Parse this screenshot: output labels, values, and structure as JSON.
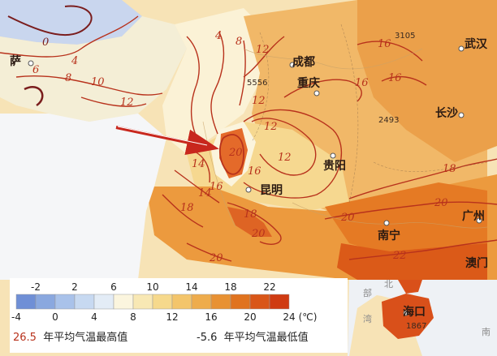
{
  "cities": {
    "chengdu": "成都",
    "chongqing": "重庆",
    "wuhan": "武汉",
    "changsha": "长沙",
    "guiyang": "贵阳",
    "kunming": "昆明",
    "nanning": "南宁",
    "guangzhou": "广州",
    "macau": "澳门",
    "haikou": "海口",
    "lhasa_partial": "萨"
  },
  "elevations": {
    "e1": "3105",
    "e2": "5556",
    "e3": "2493",
    "e4": "1867"
  },
  "isotherm_labels": {
    "a": "0",
    "b": "4",
    "c": "6",
    "d": "8",
    "e": "10",
    "f": "12",
    "g": "12",
    "h": "4",
    "i": "8",
    "j": "12",
    "k": "16",
    "l": "16",
    "m": "16",
    "n": "14",
    "o": "12",
    "p": "12",
    "q": "16",
    "r": "20",
    "s": "14",
    "t": "16",
    "u": "18",
    "v": "20",
    "w": "18",
    "x": "20",
    "y": "20",
    "z": "18",
    "aa": "22",
    "ab": "20"
  },
  "faint_labels": {
    "sea1": "部",
    "sea2": "北",
    "sea3": "湾",
    "sea4": "南"
  },
  "legend": {
    "colors": [
      "#6f8fd6",
      "#8aa8df",
      "#a9c2ea",
      "#c7d9f1",
      "#e3ecf6",
      "#fbf5de",
      "#f8e8b4",
      "#f6d98c",
      "#f3c56b",
      "#eeac4c",
      "#e89133",
      "#e0731f",
      "#d95618",
      "#cf3b12"
    ],
    "top_ticks": [
      "-2",
      "2",
      "6",
      "10",
      "14",
      "18",
      "22"
    ],
    "bottom_ticks": [
      "-4",
      "0",
      "4",
      "8",
      "12",
      "16",
      "20",
      "24"
    ],
    "unit": "(℃)",
    "note_max_value": "26.5",
    "note_max_label": "年平均气温最高值",
    "note_min_value": "-5.6",
    "note_min_label": "年平均气温最低值"
  }
}
